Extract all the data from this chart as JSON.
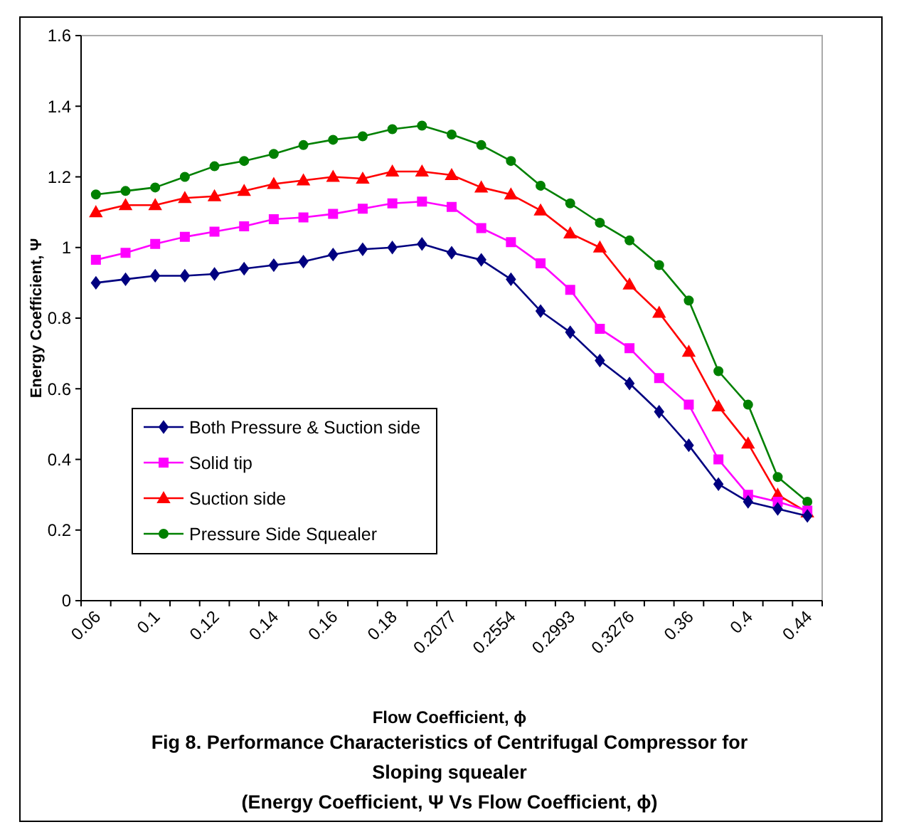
{
  "chart_data": {
    "type": "line",
    "title": "Fig 8. Performance Characteristics of Centrifugal Compressor for Sloping squealer",
    "subtitle": "(Energy Coefficient, Ψ  Vs Flow Coefficient, ϕ)",
    "xlabel": "Flow Coefficient, ϕ",
    "ylabel": "Energy Coefficient, Ψ",
    "categories": [
      "0.06",
      null,
      "0.1",
      null,
      "0.12",
      null,
      "0.14",
      null,
      "0.16",
      null,
      "0.18",
      null,
      "0.2077",
      null,
      "0.2554",
      null,
      "0.2993",
      null,
      "0.3276",
      null,
      "0.36",
      null,
      "0.4",
      null,
      "0.44"
    ],
    "ylim": [
      0,
      1.6
    ],
    "yticks": [
      0,
      0.2,
      0.4,
      0.6,
      0.8,
      1,
      1.2,
      1.4,
      1.6
    ],
    "grid": false,
    "legend": "bottom left",
    "line_style": "solid",
    "series": [
      {
        "name": "Both Pressure & Suction side",
        "color": "#000080",
        "marker": "diamond",
        "values": [
          0.9,
          0.91,
          0.92,
          0.92,
          0.925,
          0.94,
          0.95,
          0.96,
          0.98,
          0.995,
          1.0,
          1.01,
          0.985,
          0.965,
          0.91,
          0.82,
          0.76,
          0.68,
          0.615,
          0.535,
          0.44,
          0.33,
          0.28,
          0.26,
          0.24
        ]
      },
      {
        "name": "Solid tip",
        "color": "#ff00ff",
        "marker": "square",
        "values": [
          0.965,
          0.985,
          1.01,
          1.03,
          1.045,
          1.06,
          1.08,
          1.085,
          1.095,
          1.11,
          1.125,
          1.13,
          1.115,
          1.055,
          1.015,
          0.955,
          0.88,
          0.77,
          0.715,
          0.63,
          0.555,
          0.4,
          0.3,
          0.28,
          0.255
        ]
      },
      {
        "name": "Suction side",
        "color": "#ff0000",
        "marker": "triangle",
        "values": [
          1.1,
          1.12,
          1.12,
          1.14,
          1.145,
          1.16,
          1.18,
          1.19,
          1.2,
          1.195,
          1.215,
          1.215,
          1.205,
          1.17,
          1.15,
          1.105,
          1.04,
          1.0,
          0.895,
          0.815,
          0.705,
          0.55,
          0.445,
          0.3,
          0.25
        ]
      },
      {
        "name": "Pressure Side Squealer",
        "color": "#008000",
        "marker": "circle",
        "values": [
          1.15,
          1.16,
          1.17,
          1.2,
          1.23,
          1.245,
          1.265,
          1.29,
          1.305,
          1.315,
          1.335,
          1.345,
          1.32,
          1.29,
          1.245,
          1.175,
          1.125,
          1.07,
          1.02,
          0.95,
          0.85,
          0.65,
          0.555,
          0.35,
          0.28
        ]
      }
    ]
  }
}
